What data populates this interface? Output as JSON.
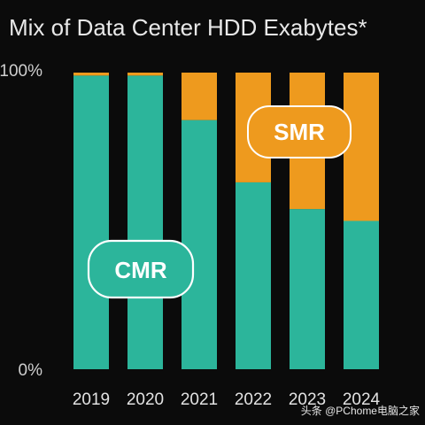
{
  "chart_data": {
    "type": "bar",
    "stacked": true,
    "title": "Mix of Data Center HDD Exabytes*",
    "categories": [
      "2019",
      "2020",
      "2021",
      "2022",
      "2023",
      "2024"
    ],
    "series": [
      {
        "name": "CMR",
        "color": "#2cb59b",
        "values": [
          99,
          99,
          84,
          63,
          54,
          50
        ]
      },
      {
        "name": "SMR",
        "color": "#ee9a1e",
        "values": [
          1,
          1,
          16,
          37,
          46,
          50
        ]
      }
    ],
    "ylim": [
      0,
      100
    ],
    "yticks": [
      "0%",
      "100%"
    ],
    "xlabel": "",
    "ylabel": "",
    "grid": false,
    "legend": "in-chart labels"
  },
  "watermark": "头条 @PChome电脑之家"
}
